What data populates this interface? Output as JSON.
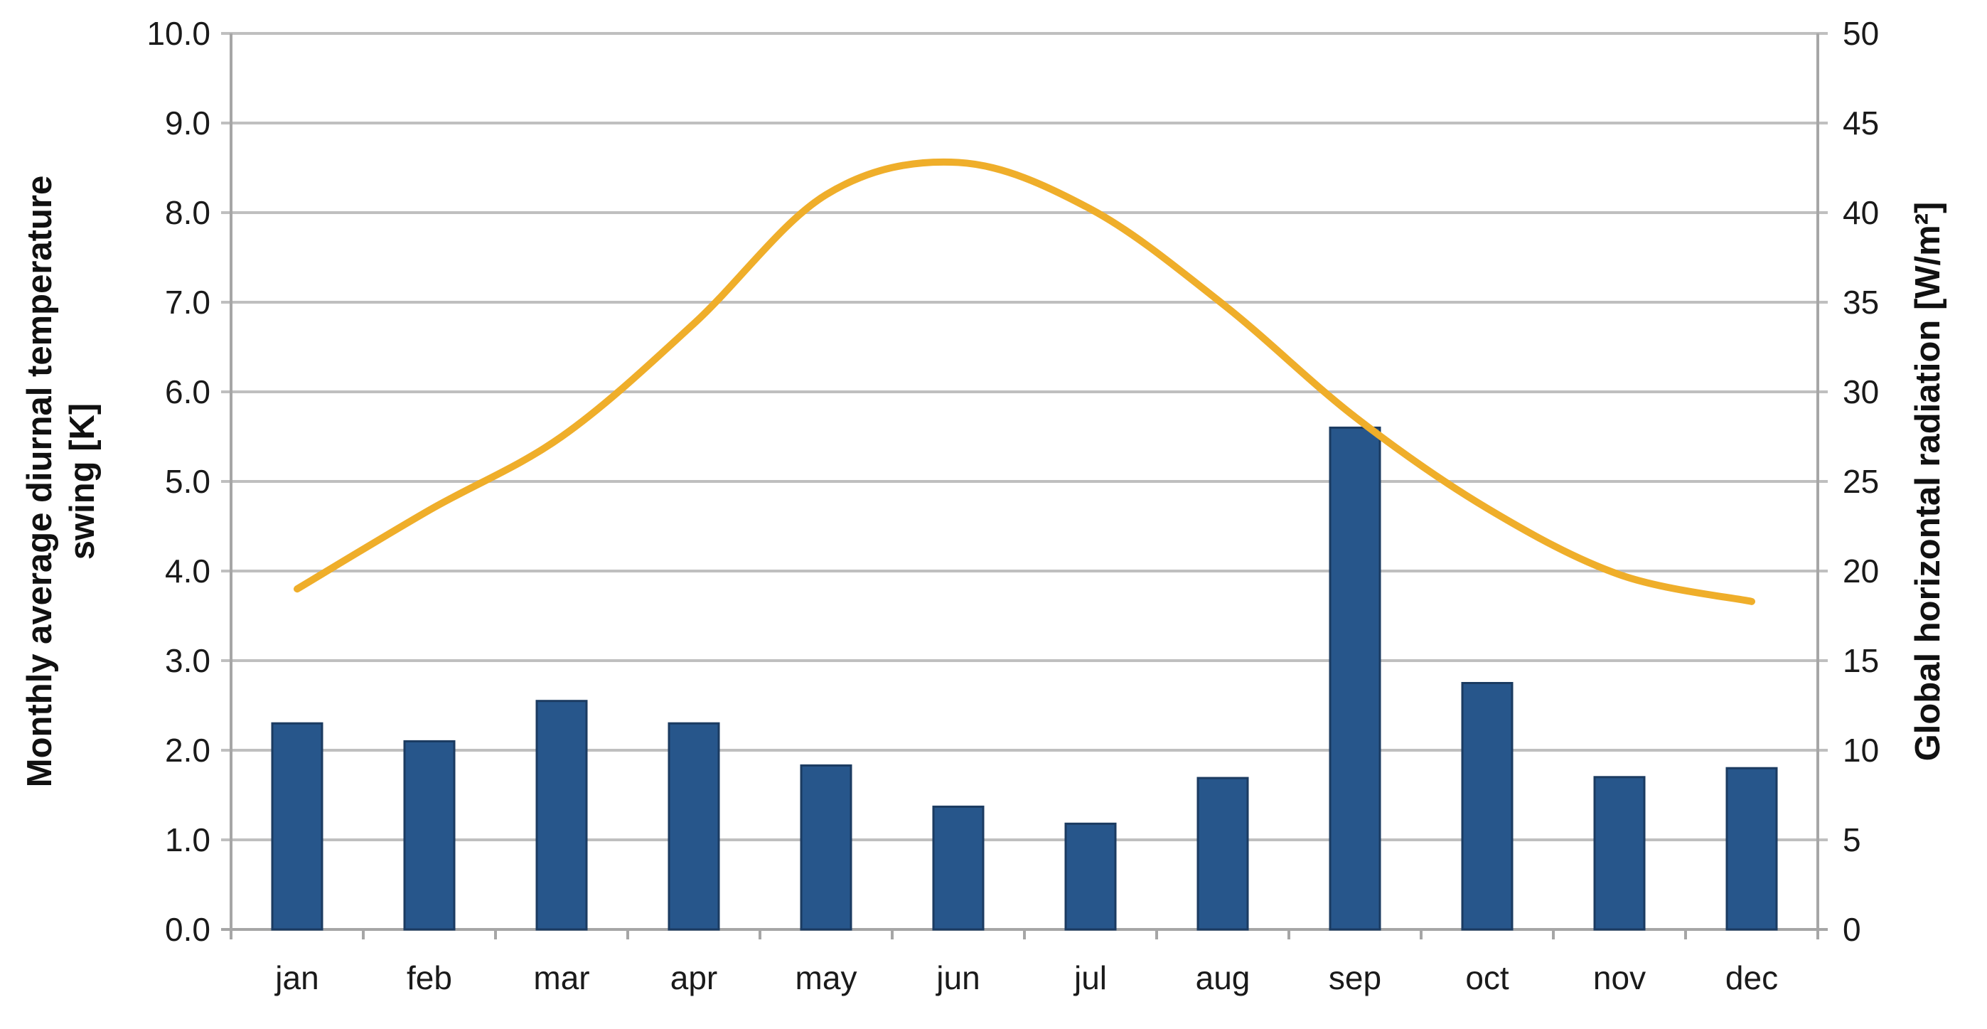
{
  "chart_data": {
    "type": "combo-bar-line",
    "categories": [
      "jan",
      "feb",
      "mar",
      "apr",
      "may",
      "jun",
      "jul",
      "aug",
      "sep",
      "oct",
      "nov",
      "dec"
    ],
    "series": [
      {
        "name": "Monthly average diurnal temperature swing [K]",
        "type": "bar",
        "axis": "left",
        "values": [
          2.3,
          2.1,
          2.55,
          2.3,
          1.83,
          1.37,
          1.18,
          1.69,
          5.6,
          2.75,
          1.7,
          1.8
        ],
        "color": "#27568B",
        "border_color": "#1B3B61"
      },
      {
        "name": "Global horizontal radiation [W/m²]",
        "type": "line",
        "axis": "right",
        "smooth": true,
        "values": [
          19.0,
          23.4,
          27.5,
          33.8,
          41.0,
          42.8,
          40.2,
          34.9,
          28.6,
          23.5,
          19.8,
          18.3
        ],
        "color": "#EFAE2A"
      }
    ],
    "left_axis": {
      "label": "Monthly average diurnal temperature swing [K]",
      "label_lines": [
        "Monthly average diurnal temperature",
        "swing [K]"
      ],
      "min": 0,
      "max": 10,
      "step": 1,
      "tick_labels": [
        "0.0",
        "1.0",
        "2.0",
        "3.0",
        "4.0",
        "5.0",
        "6.0",
        "7.0",
        "8.0",
        "9.0",
        "10.0"
      ]
    },
    "right_axis": {
      "label": "Global horizontal radiation [W/m²]",
      "min": 0,
      "max": 50,
      "step": 5,
      "tick_labels": [
        "0",
        "5",
        "10",
        "15",
        "20",
        "25",
        "30",
        "35",
        "40",
        "45",
        "50"
      ]
    },
    "grid": true,
    "legend": false,
    "colors": {
      "background": "#FFFFFF",
      "gridline": "#BFBFBF",
      "axis": "#A6A6A6",
      "text": "#1A1A1A"
    }
  }
}
